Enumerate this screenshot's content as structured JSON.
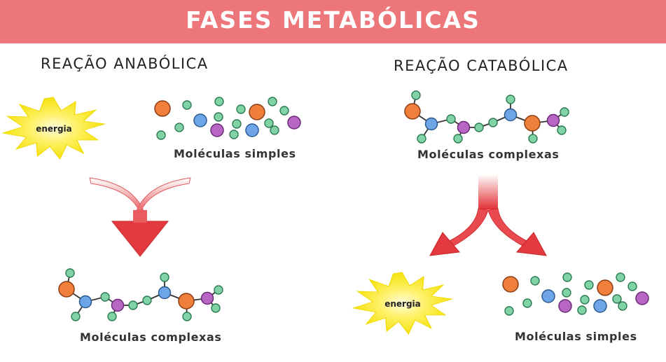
{
  "title": "FASES METABÓLICAS",
  "anabolic": {
    "heading": "REAÇÃO ANABÓLICA",
    "energy_label": "energia",
    "input_caption": "Moléculas simples",
    "output_caption": "Moléculas complexas"
  },
  "catabolic": {
    "heading": "REAÇÃO CATABÓLICA",
    "input_caption": "Moléculas complexas",
    "energy_label": "energia",
    "output_caption": "Moléculas simples"
  },
  "colors": {
    "banner": "#ed767a",
    "arrow": "#e23a3f",
    "energy": "#f9ee1f",
    "orange_atom": "#f07f3c",
    "blue_atom": "#6ea5e8",
    "purple_atom": "#b866c4",
    "green_atom": "#7fd3a5"
  }
}
